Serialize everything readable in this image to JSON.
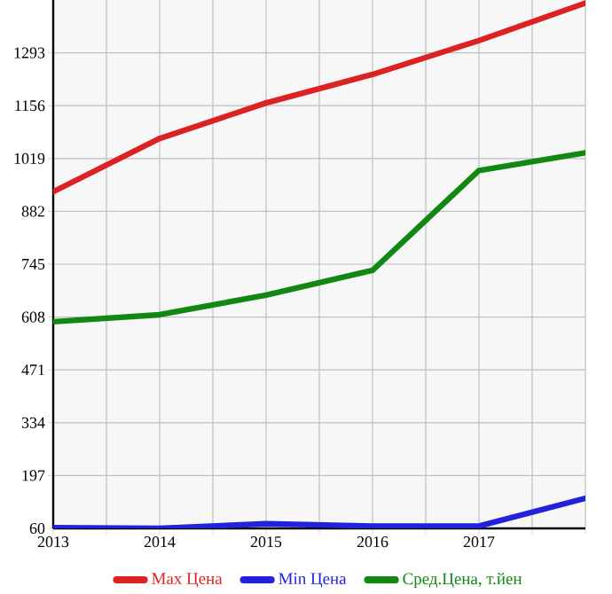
{
  "chart_data": {
    "type": "line",
    "x": [
      2013,
      2014,
      2015,
      2016,
      2017,
      2018
    ],
    "series": [
      {
        "name": "Max Цена",
        "color": "#dd2222",
        "values": [
          933,
          1071,
          1163,
          1237,
          1325,
          1422
        ]
      },
      {
        "name": "Min Цена",
        "color": "#2222dd",
        "values": [
          62,
          60,
          72,
          66,
          66,
          138
        ]
      },
      {
        "name": "Сред.Цена, т.йен",
        "color": "#118811",
        "values": [
          596,
          614,
          665,
          729,
          988,
          1034
        ]
      }
    ],
    "xlim": [
      2013,
      2018
    ],
    "xticks": [
      2013,
      {
        "value": 2013.5,
        "label": null
      },
      2014,
      {
        "value": 2014.5,
        "label": null
      },
      2015,
      {
        "value": 2015.5,
        "label": null
      },
      2016,
      {
        "value": 2016.5,
        "label": null
      },
      2017,
      {
        "value": 2017.5,
        "label": null
      },
      {
        "value": 2018,
        "label": null
      }
    ],
    "ylim": [
      60,
      1430
    ],
    "yticks": [
      60,
      197,
      334,
      471,
      608,
      745,
      882,
      1019,
      1156,
      1293
    ],
    "grid": true,
    "legend": "bottom",
    "marker": "none",
    "line_style": "solid"
  }
}
